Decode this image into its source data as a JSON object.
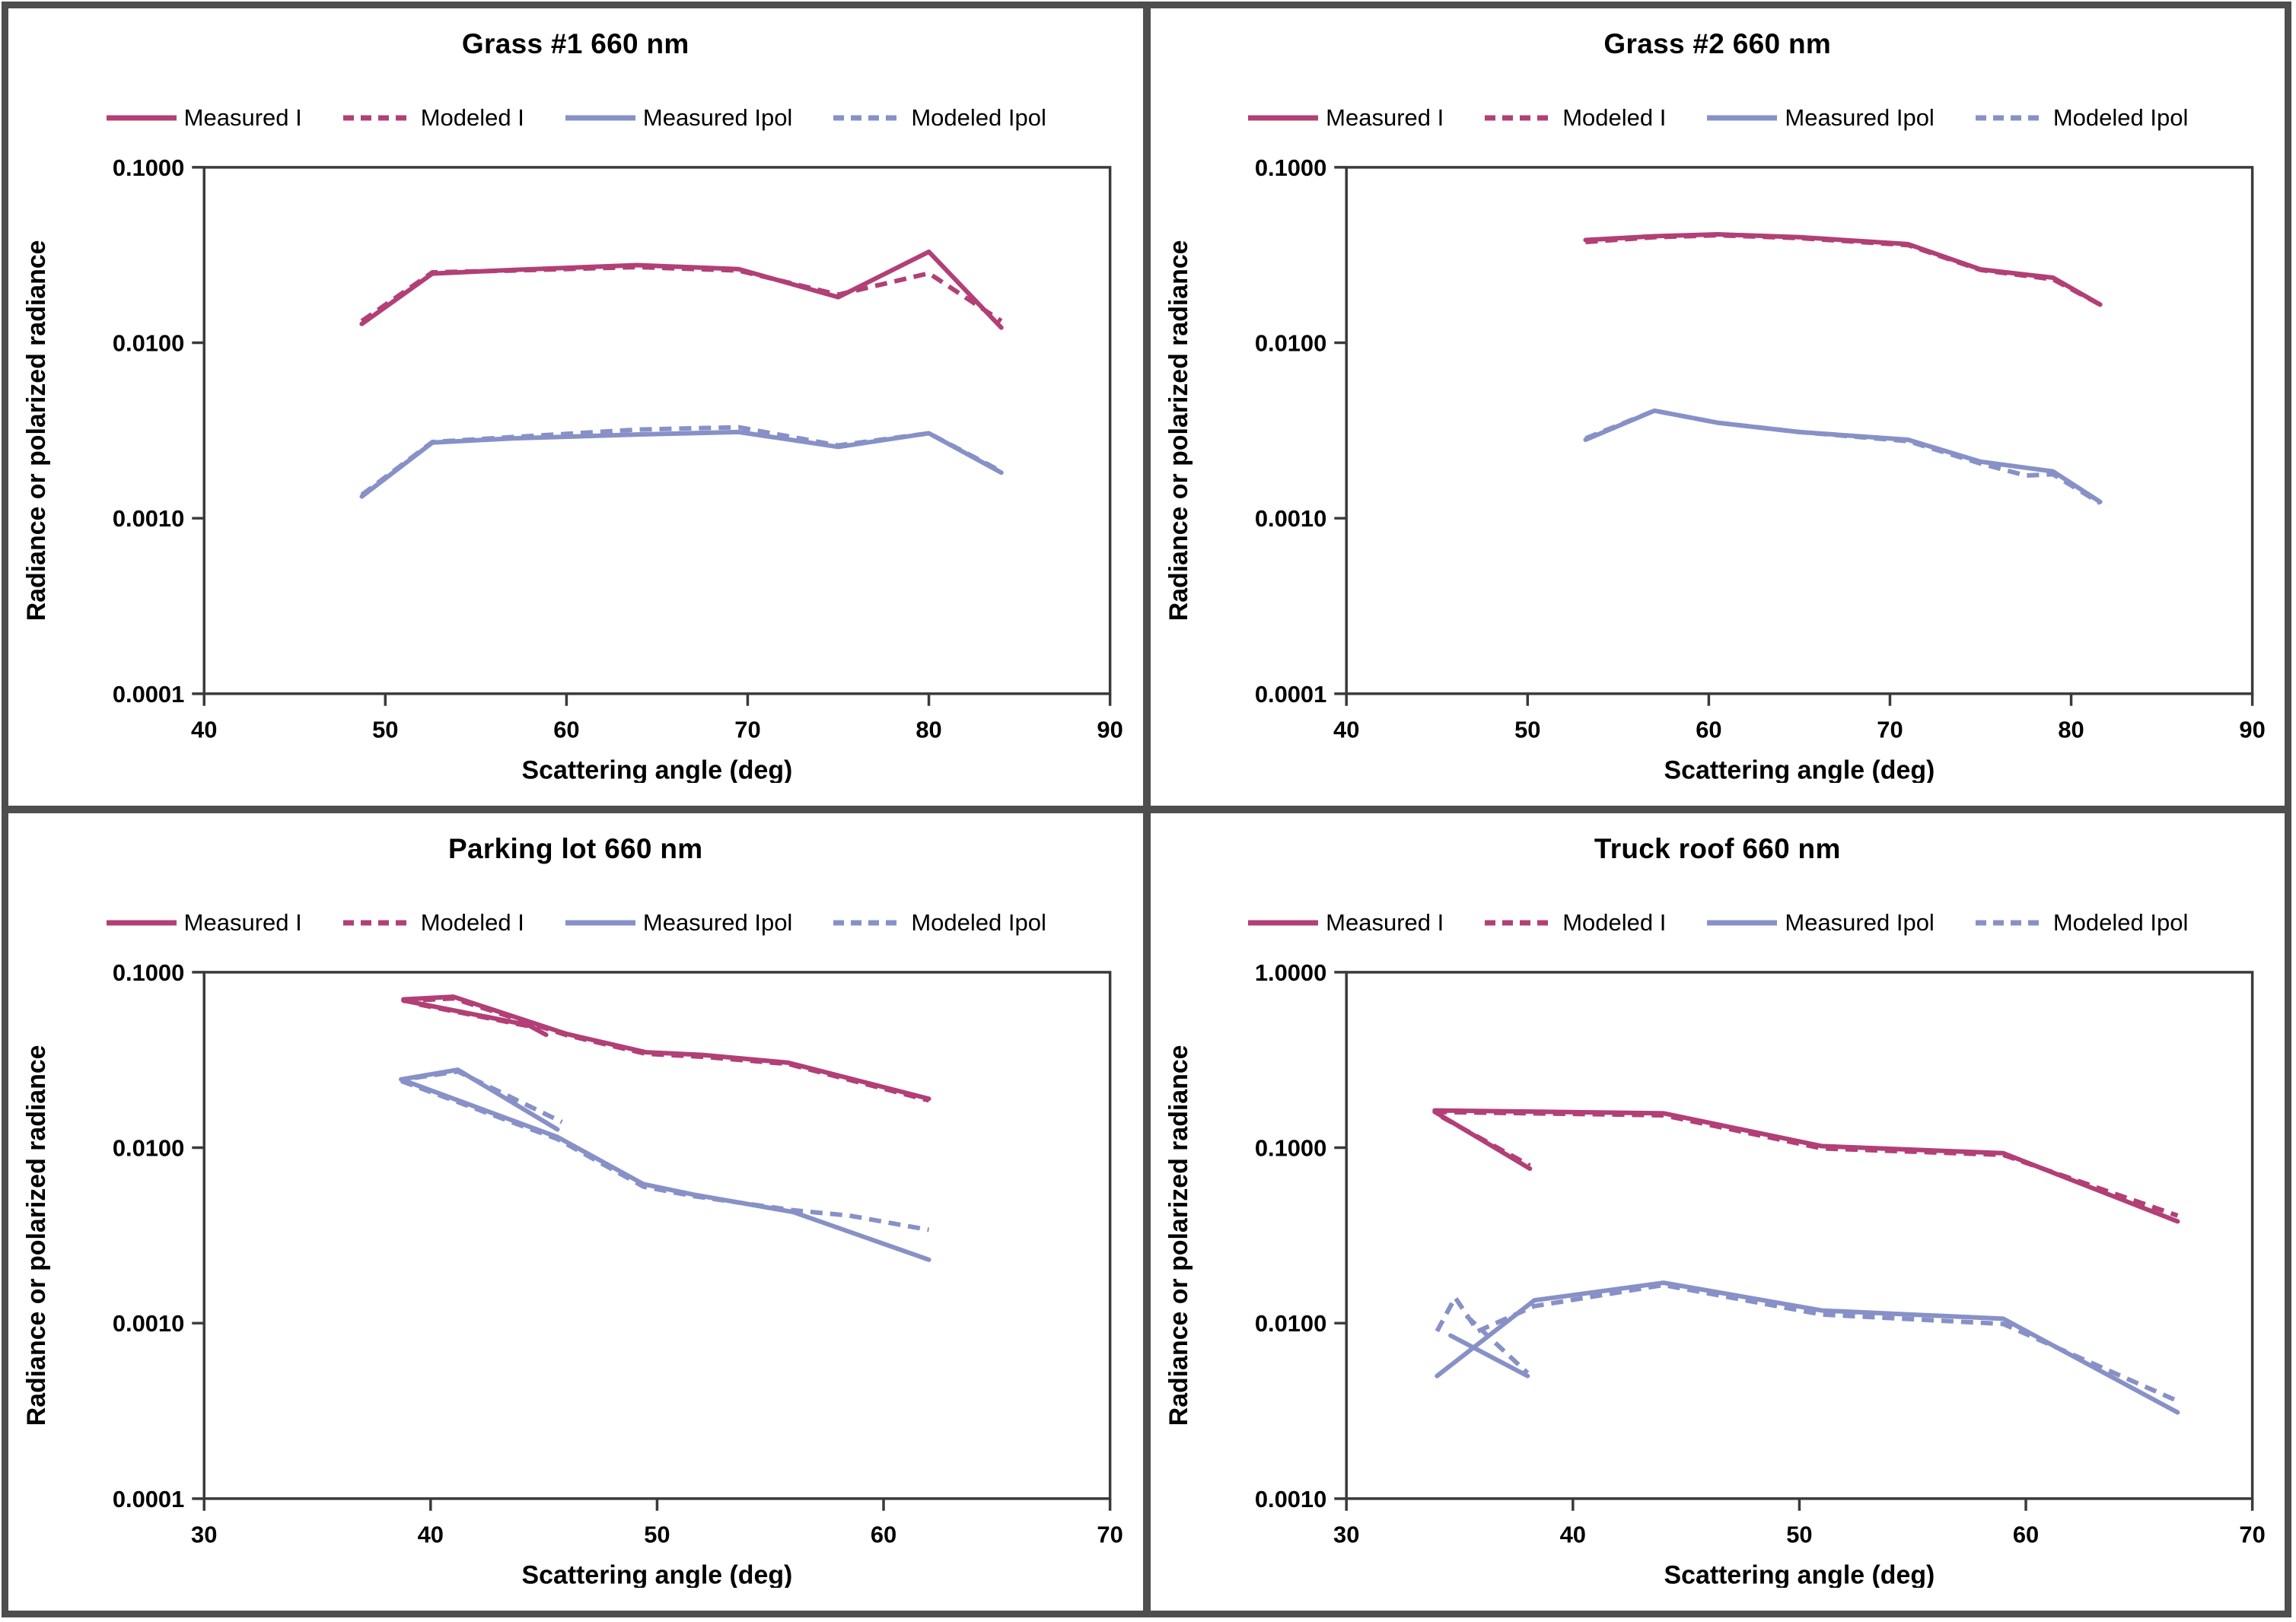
{
  "colors": {
    "measured": "#b23f76",
    "polarized": "#8791c7",
    "frame": "#3a3a3a",
    "divider": "#4e4e4e",
    "background": "#ffffff",
    "text": "#000000"
  },
  "chart_data": [
    {
      "type": "line",
      "title": "Grass #1 660 nm",
      "xlabel": "Scattering angle (deg)",
      "ylabel": "Radiance or polarized radiance",
      "yscale": "log",
      "grid": false,
      "legend_position": "top",
      "xlim": [
        40,
        90
      ],
      "ylim": [
        0.0001,
        0.1
      ],
      "xticks": [
        "40",
        "50",
        "60",
        "70",
        "80",
        "90"
      ],
      "yticks": [
        {
          "v": 0.1,
          "label": "0.1000"
        },
        {
          "v": 0.01,
          "label": "0.0100"
        },
        {
          "v": 0.001,
          "label": "0.0010"
        },
        {
          "v": 0.0001,
          "label": "0.0001"
        }
      ],
      "series": [
        {
          "name": "Measured I",
          "key": "measured-i",
          "color": "measured",
          "dash": false,
          "segments": [
            [
              [
                48.7,
                0.0128
              ],
              [
                52.6,
                0.0248
              ],
              [
                57,
                0.026
              ],
              [
                63.9,
                0.0277
              ],
              [
                69.5,
                0.0263
              ],
              [
                75,
                0.0182
              ],
              [
                80,
                0.033
              ],
              [
                84,
                0.0122
              ]
            ]
          ]
        },
        {
          "name": "Modeled I",
          "key": "modeled-i",
          "color": "measured",
          "dash": true,
          "segments": [
            [
              [
                48.7,
                0.0133
              ],
              [
                52.6,
                0.0252
              ],
              [
                57,
                0.0258
              ],
              [
                63.9,
                0.027
              ],
              [
                69.5,
                0.0258
              ],
              [
                75,
                0.0188
              ],
              [
                80,
                0.0249
              ],
              [
                84,
                0.0133
              ]
            ]
          ]
        },
        {
          "name": "Measured Ipol",
          "key": "measured-ipol",
          "color": "polarized",
          "dash": false,
          "segments": [
            [
              [
                48.7,
                0.00133
              ],
              [
                52.6,
                0.0027
              ],
              [
                57,
                0.00285
              ],
              [
                63.9,
                0.003
              ],
              [
                69.5,
                0.0031
              ],
              [
                75,
                0.00255
              ],
              [
                80,
                0.00305
              ],
              [
                84,
                0.00182
              ]
            ]
          ]
        },
        {
          "name": "Modeled Ipol",
          "key": "modeled-ipol",
          "color": "polarized",
          "dash": true,
          "segments": [
            [
              [
                48.7,
                0.00136
              ],
              [
                52.6,
                0.00272
              ],
              [
                57,
                0.0029
              ],
              [
                63.9,
                0.0032
              ],
              [
                69.5,
                0.0033
              ],
              [
                75,
                0.0026
              ],
              [
                80,
                0.00305
              ],
              [
                84,
                0.00185
              ]
            ]
          ]
        }
      ]
    },
    {
      "type": "line",
      "title": "Grass #2 660 nm",
      "xlabel": "Scattering angle (deg)",
      "ylabel": "Radiance or polarized radiance",
      "yscale": "log",
      "grid": false,
      "legend_position": "top",
      "xlim": [
        40,
        90
      ],
      "ylim": [
        0.0001,
        0.1
      ],
      "xticks": [
        "40",
        "50",
        "60",
        "70",
        "80",
        "90"
      ],
      "yticks": [
        {
          "v": 0.1,
          "label": "0.1000"
        },
        {
          "v": 0.01,
          "label": "0.0100"
        },
        {
          "v": 0.001,
          "label": "0.0010"
        },
        {
          "v": 0.0001,
          "label": "0.0001"
        }
      ],
      "series": [
        {
          "name": "Measured I",
          "key": "measured-i",
          "color": "measured",
          "dash": false,
          "segments": [
            [
              [
                53.2,
                0.0385
              ],
              [
                57,
                0.0405
              ],
              [
                60.5,
                0.0415
              ],
              [
                65,
                0.04
              ],
              [
                71,
                0.0365
              ],
              [
                75,
                0.0262
              ],
              [
                79,
                0.0235
              ],
              [
                81.6,
                0.0165
              ]
            ]
          ]
        },
        {
          "name": "Modeled I",
          "key": "modeled-i",
          "color": "measured",
          "dash": true,
          "segments": [
            [
              [
                53.2,
                0.0375
              ],
              [
                57,
                0.04
              ],
              [
                60.5,
                0.041
              ],
              [
                65,
                0.0395
              ],
              [
                71,
                0.036
              ],
              [
                75,
                0.026
              ],
              [
                79,
                0.023
              ],
              [
                81.6,
                0.0165
              ]
            ]
          ]
        },
        {
          "name": "Measured Ipol",
          "key": "measured-ipol",
          "color": "polarized",
          "dash": false,
          "segments": [
            [
              [
                53.2,
                0.0028
              ],
              [
                57,
                0.0041
              ],
              [
                60.5,
                0.0035
              ],
              [
                65,
                0.0031
              ],
              [
                71,
                0.0028
              ],
              [
                75,
                0.0021
              ],
              [
                79,
                0.00185
              ],
              [
                81.6,
                0.00124
              ]
            ]
          ]
        },
        {
          "name": "Modeled Ipol",
          "key": "modeled-ipol",
          "color": "polarized",
          "dash": true,
          "segments": [
            [
              [
                53.2,
                0.00285
              ],
              [
                57,
                0.0041
              ],
              [
                60.5,
                0.0035
              ],
              [
                65,
                0.0031
              ],
              [
                71,
                0.00275
              ],
              [
                75,
                0.00205
              ],
              [
                77.5,
                0.00175
              ],
              [
                79,
                0.00178
              ],
              [
                81.6,
                0.00122
              ]
            ]
          ]
        }
      ]
    },
    {
      "type": "line",
      "title": "Parking lot 660 nm",
      "xlabel": "Scattering angle (deg)",
      "ylabel": "Radiance or polarized radiance",
      "yscale": "log",
      "grid": false,
      "legend_position": "top",
      "xlim": [
        30,
        70
      ],
      "ylim": [
        0.0001,
        0.1
      ],
      "xticks": [
        "30",
        "40",
        "50",
        "60",
        "70"
      ],
      "yticks": [
        {
          "v": 0.1,
          "label": "0.1000"
        },
        {
          "v": 0.01,
          "label": "0.0100"
        },
        {
          "v": 0.001,
          "label": "0.0010"
        },
        {
          "v": 0.0001,
          "label": "0.0001"
        }
      ],
      "series": [
        {
          "name": "Measured I",
          "key": "measured-i",
          "color": "measured",
          "dash": false,
          "segments": [
            [
              [
                38.8,
                0.07
              ],
              [
                41,
                0.0725
              ],
              [
                46,
                0.0445
              ],
              [
                49.5,
                0.035
              ],
              [
                52,
                0.0338
              ],
              [
                55.8,
                0.0305
              ],
              [
                62,
                0.019
              ]
            ],
            [
              [
                38.8,
                0.069
              ],
              [
                44.3,
                0.05
              ],
              [
                45.1,
                0.044
              ]
            ]
          ]
        },
        {
          "name": "Modeled I",
          "key": "modeled-i",
          "color": "measured",
          "dash": true,
          "segments": [
            [
              [
                38.8,
                0.0685
              ],
              [
                41,
                0.071
              ],
              [
                46,
                0.0438
              ],
              [
                49.5,
                0.0343
              ],
              [
                52,
                0.033
              ],
              [
                55.8,
                0.03
              ],
              [
                62,
                0.0186
              ]
            ],
            [
              [
                39.5,
                0.0655
              ],
              [
                44.6,
                0.0485
              ]
            ]
          ]
        },
        {
          "name": "Measured Ipol",
          "key": "measured-ipol",
          "color": "polarized",
          "dash": false,
          "segments": [
            [
              [
                38.7,
                0.0245
              ],
              [
                45.6,
                0.0115
              ],
              [
                49.4,
                0.0062
              ],
              [
                51.6,
                0.0054
              ],
              [
                56,
                0.0043
              ],
              [
                62,
                0.0023
              ]
            ],
            [
              [
                38.7,
                0.0245
              ],
              [
                41.2,
                0.0278
              ],
              [
                45.6,
                0.0127
              ]
            ]
          ]
        },
        {
          "name": "Modeled Ipol",
          "key": "modeled-ipol",
          "color": "polarized",
          "dash": true,
          "segments": [
            [
              [
                38.7,
                0.024
              ],
              [
                45.6,
                0.0112
              ],
              [
                49.4,
                0.006
              ],
              [
                51.6,
                0.0053
              ],
              [
                56,
                0.0044
              ],
              [
                58.5,
                0.0041
              ],
              [
                62,
                0.0034
              ]
            ],
            [
              [
                39.3,
                0.025
              ],
              [
                41.2,
                0.0272
              ],
              [
                45.8,
                0.014
              ]
            ]
          ]
        }
      ]
    },
    {
      "type": "line",
      "title": "Truck roof 660 nm",
      "xlabel": "Scattering angle (deg)",
      "ylabel": "Radiance or polarized radiance",
      "yscale": "log",
      "grid": false,
      "legend_position": "top",
      "xlim": [
        30,
        70
      ],
      "ylim": [
        0.001,
        1
      ],
      "xticks": [
        "30",
        "40",
        "50",
        "60",
        "70"
      ],
      "yticks": [
        {
          "v": 1,
          "label": "1.0000"
        },
        {
          "v": 0.1,
          "label": "0.1000"
        },
        {
          "v": 0.01,
          "label": "0.0100"
        },
        {
          "v": 0.001,
          "label": "0.0010"
        }
      ],
      "series": [
        {
          "name": "Measured I",
          "key": "measured-i",
          "color": "measured",
          "dash": false,
          "segments": [
            [
              [
                33.9,
                0.163
              ],
              [
                44,
                0.157
              ],
              [
                51,
                0.102
              ],
              [
                59,
                0.093
              ],
              [
                66.7,
                0.038
              ]
            ],
            [
              [
                33.9,
                0.16
              ],
              [
                38.1,
                0.076
              ]
            ]
          ]
        },
        {
          "name": "Modeled I",
          "key": "modeled-i",
          "color": "measured",
          "dash": true,
          "segments": [
            [
              [
                33.9,
                0.16
              ],
              [
                44,
                0.153
              ],
              [
                51,
                0.099
              ],
              [
                59,
                0.091
              ],
              [
                66.7,
                0.041
              ]
            ],
            [
              [
                34.2,
                0.15
              ],
              [
                38.1,
                0.079
              ]
            ]
          ]
        },
        {
          "name": "Measured Ipol",
          "key": "measured-ipol",
          "color": "polarized",
          "dash": false,
          "segments": [
            [
              [
                34,
                0.005
              ],
              [
                38.3,
                0.0135
              ],
              [
                44,
                0.017
              ],
              [
                51,
                0.0118
              ],
              [
                59,
                0.0106
              ],
              [
                66.7,
                0.0031
              ]
            ],
            [
              [
                34.6,
                0.0085
              ],
              [
                38,
                0.005
              ]
            ]
          ]
        },
        {
          "name": "Modeled Ipol",
          "key": "modeled-ipol",
          "color": "polarized",
          "dash": true,
          "segments": [
            [
              [
                34,
                0.009
              ],
              [
                34.8,
                0.014
              ],
              [
                35.8,
                0.009
              ],
              [
                38.3,
                0.0125
              ],
              [
                44,
                0.0165
              ],
              [
                51,
                0.0112
              ],
              [
                59,
                0.0099
              ],
              [
                66.7,
                0.0036
              ]
            ],
            [
              [
                35.3,
                0.011
              ],
              [
                38,
                0.0052
              ]
            ]
          ]
        }
      ]
    }
  ]
}
